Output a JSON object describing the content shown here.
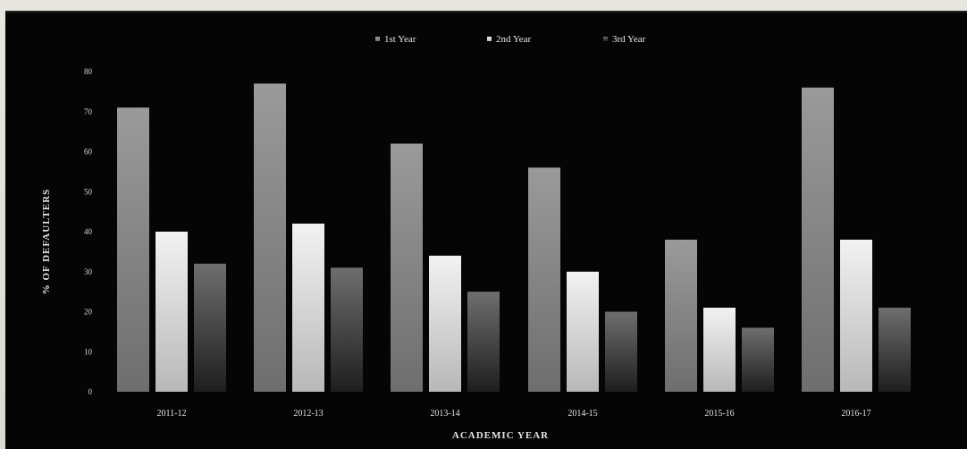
{
  "chart_data": {
    "type": "bar",
    "title": "",
    "xlabel": "ACADEMIC YEAR",
    "ylabel": "% OF DEFAULTERS",
    "ylim": [
      0,
      80
    ],
    "yticks": [
      0,
      10,
      20,
      30,
      40,
      50,
      60,
      70,
      80
    ],
    "categories": [
      "2011-12",
      "2012-13",
      "2013-14",
      "2014-15",
      "2015-16",
      "2016-17"
    ],
    "series": [
      {
        "name": "1st Year",
        "values": [
          71,
          77,
          62,
          56,
          38,
          76
        ],
        "color": "#8a8a8a"
      },
      {
        "name": "2nd Year",
        "values": [
          40,
          42,
          34,
          30,
          21,
          38
        ],
        "color": "#dcdcdc"
      },
      {
        "name": "3rd Year",
        "values": [
          32,
          31,
          25,
          20,
          16,
          21
        ],
        "color": "#5c5c5c"
      }
    ],
    "legend_position": "top",
    "grid": false
  }
}
